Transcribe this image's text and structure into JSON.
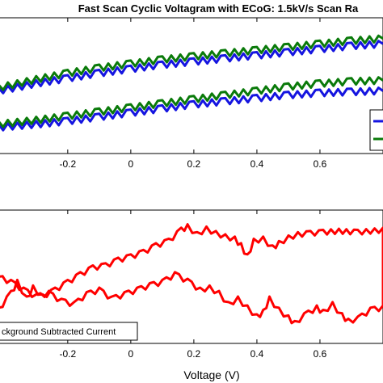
{
  "chart_data": [
    {
      "type": "line",
      "title": "Fast Scan Cyclic Voltagram with ECoG: 1.5kV/s Scan Ra",
      "xlabel": "",
      "ylabel": "",
      "xlim": [
        -0.42,
        0.8
      ],
      "x_ticks": [
        "-0.2",
        "0",
        "0.2",
        "0.4",
        "0.6"
      ],
      "x_tick_values": [
        -0.2,
        0,
        0.2,
        0.4,
        0.6
      ],
      "series": [
        {
          "color": "#1515e0",
          "upper": [
            [
              -0.42,
              0.3
            ],
            [
              -0.3,
              0.37
            ],
            [
              -0.2,
              0.42
            ],
            [
              -0.1,
              0.47
            ],
            [
              0.0,
              0.51
            ],
            [
              0.1,
              0.55
            ],
            [
              0.2,
              0.58
            ],
            [
              0.3,
              0.61
            ],
            [
              0.4,
              0.64
            ],
            [
              0.5,
              0.67
            ],
            [
              0.6,
              0.7
            ],
            [
              0.7,
              0.73
            ],
            [
              0.8,
              0.75
            ]
          ],
          "lower": [
            [
              -0.42,
              -0.05
            ],
            [
              -0.3,
              -0.02
            ],
            [
              -0.2,
              0.01
            ],
            [
              -0.1,
              0.05
            ],
            [
              0.0,
              0.09
            ],
            [
              0.1,
              0.13
            ],
            [
              0.2,
              0.17
            ],
            [
              0.3,
              0.2
            ],
            [
              0.4,
              0.23
            ],
            [
              0.5,
              0.26
            ],
            [
              0.6,
              0.28
            ],
            [
              0.7,
              0.29
            ],
            [
              0.8,
              0.3
            ]
          ]
        },
        {
          "color": "#0a7a0a",
          "upper": [
            [
              -0.42,
              0.33
            ],
            [
              -0.3,
              0.41
            ],
            [
              -0.2,
              0.47
            ],
            [
              -0.1,
              0.52
            ],
            [
              0.0,
              0.56
            ],
            [
              0.1,
              0.6
            ],
            [
              0.2,
              0.63
            ],
            [
              0.3,
              0.66
            ],
            [
              0.4,
              0.69
            ],
            [
              0.5,
              0.72
            ],
            [
              0.6,
              0.75
            ],
            [
              0.7,
              0.78
            ],
            [
              0.8,
              0.8
            ]
          ],
          "lower": [
            [
              -0.42,
              -0.02
            ],
            [
              -0.3,
              0.02
            ],
            [
              -0.2,
              0.06
            ],
            [
              -0.1,
              0.1
            ],
            [
              0.0,
              0.14
            ],
            [
              0.1,
              0.18
            ],
            [
              0.2,
              0.22
            ],
            [
              0.3,
              0.26
            ],
            [
              0.4,
              0.3
            ],
            [
              0.5,
              0.34
            ],
            [
              0.6,
              0.37
            ],
            [
              0.7,
              0.39
            ],
            [
              0.8,
              0.4
            ]
          ]
        }
      ],
      "ylim": [
        -0.3,
        1.0
      ],
      "legend": "right, partially cut off"
    },
    {
      "type": "line",
      "title": "",
      "xlabel": "Voltage (V)",
      "ylabel": "",
      "xlim": [
        -0.42,
        0.8
      ],
      "x_ticks": [
        "-0.2",
        "0",
        "0.2",
        "0.4",
        "0.6"
      ],
      "x_tick_values": [
        -0.2,
        0,
        0.2,
        0.4,
        0.6
      ],
      "legend": "ckground Subtracted Current",
      "legend_position": "bottom-left",
      "series": [
        {
          "name": "ckground Subtracted Current",
          "color": "#ff0000",
          "values": [
            [
              -0.42,
              0.1
            ],
            [
              -0.38,
              0.25
            ],
            [
              -0.36,
              0.35
            ],
            [
              -0.33,
              0.2
            ],
            [
              -0.31,
              0.3
            ],
            [
              -0.28,
              0.22
            ],
            [
              -0.24,
              0.28
            ],
            [
              -0.2,
              0.35
            ],
            [
              -0.16,
              0.42
            ],
            [
              -0.12,
              0.48
            ],
            [
              -0.08,
              0.5
            ],
            [
              -0.04,
              0.55
            ],
            [
              0.0,
              0.58
            ],
            [
              0.04,
              0.62
            ],
            [
              0.08,
              0.68
            ],
            [
              0.12,
              0.72
            ],
            [
              0.16,
              0.82
            ],
            [
              0.18,
              0.85
            ],
            [
              0.21,
              0.78
            ],
            [
              0.24,
              0.83
            ],
            [
              0.27,
              0.79
            ],
            [
              0.3,
              0.76
            ],
            [
              0.33,
              0.74
            ],
            [
              0.35,
              0.68
            ],
            [
              0.37,
              0.58
            ],
            [
              0.39,
              0.72
            ],
            [
              0.42,
              0.74
            ],
            [
              0.45,
              0.66
            ],
            [
              0.47,
              0.7
            ],
            [
              0.5,
              0.75
            ],
            [
              0.53,
              0.78
            ],
            [
              0.57,
              0.79
            ],
            [
              0.61,
              0.8
            ],
            [
              0.66,
              0.81
            ],
            [
              0.72,
              0.8
            ],
            [
              0.8,
              0.82
            ],
            [
              0.8,
              0.12
            ],
            [
              0.76,
              0.1
            ],
            [
              0.72,
              0.02
            ],
            [
              0.69,
              0.0
            ],
            [
              0.67,
              0.05
            ],
            [
              0.64,
              0.15
            ],
            [
              0.61,
              0.08
            ],
            [
              0.59,
              0.12
            ],
            [
              0.55,
              0.05
            ],
            [
              0.52,
              -0.02
            ],
            [
              0.5,
              0.03
            ],
            [
              0.47,
              0.1
            ],
            [
              0.44,
              0.2
            ],
            [
              0.42,
              0.08
            ],
            [
              0.4,
              0.04
            ],
            [
              0.37,
              0.12
            ],
            [
              0.34,
              0.2
            ],
            [
              0.31,
              0.15
            ],
            [
              0.28,
              0.25
            ],
            [
              0.25,
              0.3
            ],
            [
              0.22,
              0.28
            ],
            [
              0.18,
              0.36
            ],
            [
              0.14,
              0.42
            ],
            [
              0.1,
              0.35
            ],
            [
              0.06,
              0.32
            ],
            [
              0.02,
              0.28
            ],
            [
              -0.02,
              0.24
            ],
            [
              -0.06,
              0.2
            ],
            [
              -0.1,
              0.28
            ],
            [
              -0.14,
              0.24
            ],
            [
              -0.18,
              0.15
            ],
            [
              -0.22,
              0.18
            ],
            [
              -0.26,
              0.25
            ],
            [
              -0.3,
              0.22
            ],
            [
              -0.34,
              0.28
            ],
            [
              -0.38,
              0.35
            ],
            [
              -0.42,
              0.4
            ]
          ]
        }
      ],
      "ylim": [
        -0.2,
        1.0
      ]
    }
  ]
}
